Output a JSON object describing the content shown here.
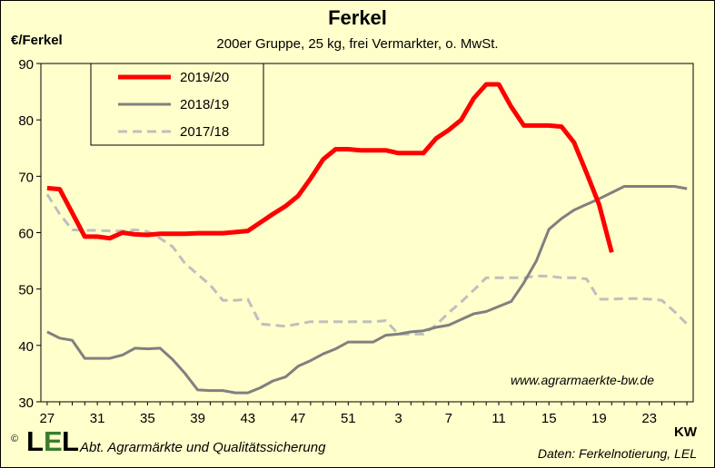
{
  "header": {
    "title": "Ferkel",
    "subtitle": "200er Gruppe, 25 kg, frei Vermarkter, o. MwSt.",
    "y_unit": "€/Ferkel",
    "x_unit": "KW"
  },
  "footer": {
    "copyright": "©",
    "logo_text": "LEL",
    "organization": "Abt. Agrarmärkte und Qualitätssicherung",
    "source": "Daten: Ferkelnotierung, LEL",
    "website": "www.agrarmaerkte-bw.de"
  },
  "colors": {
    "background": "#ffffcc",
    "series_2019_20": "#ff0000",
    "series_2018_19": "#808080",
    "series_2017_18": "#bfbfbf"
  },
  "chart_data": {
    "type": "line",
    "title": "Ferkel",
    "subtitle": "200er Gruppe, 25 kg, frei Vermarkter, o. MwSt.",
    "ylabel": "€/Ferkel",
    "xlabel": "KW",
    "ylim": [
      30,
      90
    ],
    "yticks": [
      30,
      40,
      50,
      60,
      70,
      80,
      90
    ],
    "grid": true,
    "legend_position": "top-left",
    "x": [
      27,
      28,
      29,
      30,
      31,
      32,
      33,
      34,
      35,
      36,
      37,
      38,
      39,
      40,
      41,
      42,
      43,
      44,
      45,
      46,
      47,
      48,
      49,
      50,
      51,
      52,
      1,
      2,
      3,
      4,
      5,
      6,
      7,
      8,
      9,
      10,
      11,
      12,
      13,
      14,
      15,
      16,
      17,
      18,
      19,
      20,
      21,
      22,
      23,
      24,
      25,
      26
    ],
    "xtick_labels": [
      "27",
      "31",
      "35",
      "39",
      "43",
      "47",
      "51",
      "3",
      "7",
      "11",
      "15",
      "19",
      "23"
    ],
    "series": [
      {
        "name": "2019/20",
        "style": "solid-thick",
        "color": "#ff0000",
        "values": [
          67.9,
          67.7,
          63.5,
          59.3,
          59.3,
          59.0,
          60.0,
          59.7,
          59.6,
          59.8,
          59.8,
          59.8,
          59.9,
          59.9,
          59.9,
          60.1,
          60.3,
          61.8,
          63.3,
          64.7,
          66.5,
          69.6,
          73.0,
          74.8,
          74.8,
          74.6,
          74.6,
          74.6,
          74.1,
          74.1,
          74.1,
          76.7,
          78.2,
          80.0,
          83.8,
          86.3,
          86.3,
          82.3,
          79.0,
          79.0,
          79.0,
          78.8,
          76.0,
          70.6,
          65.0,
          56.5,
          null,
          null,
          null,
          null,
          null,
          null
        ]
      },
      {
        "name": "2018/19",
        "style": "solid",
        "color": "#808080",
        "values": [
          42.4,
          41.3,
          40.9,
          37.7,
          37.7,
          37.7,
          38.3,
          39.5,
          39.4,
          39.5,
          37.5,
          35.0,
          32.1,
          32.0,
          32.0,
          31.6,
          31.6,
          32.5,
          33.7,
          34.4,
          36.3,
          37.3,
          38.5,
          39.4,
          40.6,
          40.6,
          40.6,
          41.8,
          42.0,
          42.4,
          42.6,
          43.2,
          43.6,
          44.6,
          45.6,
          46.0,
          46.9,
          47.8,
          51.1,
          55.0,
          60.6,
          62.5,
          64.0,
          65.0,
          66.0,
          67.1,
          68.2,
          68.2,
          68.2,
          68.2,
          68.2,
          67.8
        ]
      },
      {
        "name": "2017/18",
        "style": "dashed",
        "color": "#bfbfbf",
        "values": [
          66.8,
          63.3,
          60.5,
          60.4,
          60.4,
          60.3,
          60.3,
          60.5,
          60.2,
          59.0,
          57.5,
          54.5,
          52.6,
          50.7,
          48.0,
          48.0,
          48.2,
          43.8,
          43.6,
          43.4,
          43.8,
          44.2,
          44.2,
          44.2,
          44.2,
          44.2,
          44.2,
          44.4,
          42.0,
          42.0,
          42.0,
          43.6,
          45.8,
          47.7,
          49.8,
          52.0,
          52.0,
          52.0,
          52.0,
          52.3,
          52.3,
          52.0,
          52.0,
          51.8,
          48.2,
          48.2,
          48.3,
          48.3,
          48.2,
          48.0,
          46.0,
          43.8
        ]
      }
    ]
  }
}
